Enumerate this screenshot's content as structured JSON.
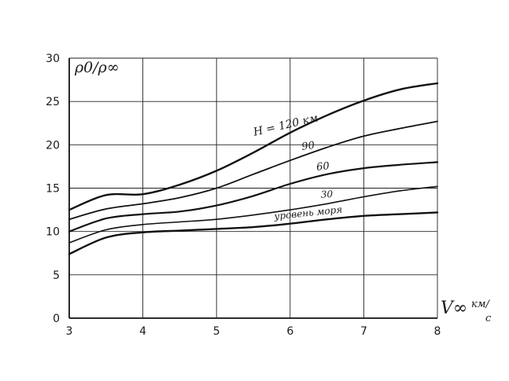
{
  "chart_data": {
    "type": "line",
    "ylabel": "ρ0/ρ∞",
    "xlabel_main": "V∞",
    "xlabel_unit_top": "км/",
    "xlabel_unit_bottom": "с",
    "xlim": [
      3,
      8
    ],
    "ylim": [
      0,
      30
    ],
    "xticks": [
      3,
      4,
      5,
      6,
      7,
      8
    ],
    "yticks": [
      0,
      5,
      10,
      15,
      20,
      25,
      30
    ],
    "grid": true,
    "x": [
      3.0,
      3.5,
      4.0,
      4.5,
      5.0,
      5.5,
      6.0,
      6.5,
      7.0,
      7.5,
      8.0
    ],
    "series": [
      {
        "name": "H = 120 км",
        "values": [
          12.5,
          14.2,
          14.3,
          15.4,
          17.0,
          19.1,
          21.4,
          23.4,
          25.1,
          26.4,
          27.1
        ]
      },
      {
        "name": "90",
        "values": [
          11.4,
          12.6,
          13.2,
          13.9,
          15.0,
          16.6,
          18.2,
          19.7,
          21.0,
          21.9,
          22.7
        ]
      },
      {
        "name": "60",
        "values": [
          10.0,
          11.5,
          12.0,
          12.3,
          13.0,
          14.1,
          15.5,
          16.6,
          17.3,
          17.7,
          18.0
        ]
      },
      {
        "name": "30",
        "values": [
          8.7,
          10.2,
          10.8,
          11.1,
          11.4,
          11.9,
          12.5,
          13.2,
          14.0,
          14.7,
          15.2
        ]
      },
      {
        "name": "уровень моря",
        "values": [
          7.4,
          9.3,
          9.9,
          10.1,
          10.3,
          10.5,
          10.9,
          11.4,
          11.8,
          12.0,
          12.2
        ]
      }
    ]
  }
}
